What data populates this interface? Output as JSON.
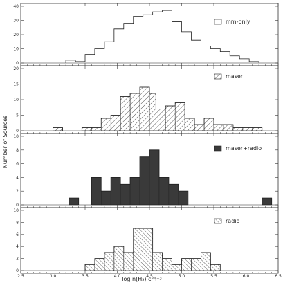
{
  "chart_data": [
    {
      "type": "bar",
      "legend": "mm-only",
      "style": "outline",
      "ylim": [
        0,
        40
      ],
      "yticks": [
        "0",
        "10",
        "20",
        "30",
        "40"
      ],
      "bins": [
        {
          "x0": 3.2,
          "x1": 3.35,
          "v": 2
        },
        {
          "x0": 3.35,
          "x1": 3.5,
          "v": 1
        },
        {
          "x0": 3.5,
          "x1": 3.65,
          "v": 6
        },
        {
          "x0": 3.65,
          "x1": 3.8,
          "v": 10
        },
        {
          "x0": 3.8,
          "x1": 3.95,
          "v": 15
        },
        {
          "x0": 3.95,
          "x1": 4.1,
          "v": 24
        },
        {
          "x0": 4.1,
          "x1": 4.25,
          "v": 28
        },
        {
          "x0": 4.25,
          "x1": 4.4,
          "v": 33
        },
        {
          "x0": 4.4,
          "x1": 4.55,
          "v": 34
        },
        {
          "x0": 4.55,
          "x1": 4.7,
          "v": 36
        },
        {
          "x0": 4.7,
          "x1": 4.85,
          "v": 37
        },
        {
          "x0": 4.85,
          "x1": 5.0,
          "v": 29
        },
        {
          "x0": 5.0,
          "x1": 5.15,
          "v": 22
        },
        {
          "x0": 5.15,
          "x1": 5.3,
          "v": 16
        },
        {
          "x0": 5.3,
          "x1": 5.45,
          "v": 12
        },
        {
          "x0": 5.45,
          "x1": 5.6,
          "v": 10
        },
        {
          "x0": 5.6,
          "x1": 5.75,
          "v": 8
        },
        {
          "x0": 5.75,
          "x1": 5.9,
          "v": 5
        },
        {
          "x0": 5.9,
          "x1": 6.05,
          "v": 3
        },
        {
          "x0": 6.05,
          "x1": 6.2,
          "v": 1
        }
      ]
    },
    {
      "type": "bar",
      "legend": "maser",
      "style": "hatch",
      "ylim": [
        0,
        20
      ],
      "yticks": [
        "0",
        "5",
        "10",
        "15",
        "20"
      ],
      "bins": [
        {
          "x0": 3.0,
          "x1": 3.15,
          "v": 1
        },
        {
          "x0": 3.45,
          "x1": 3.6,
          "v": 1
        },
        {
          "x0": 3.6,
          "x1": 3.75,
          "v": 1
        },
        {
          "x0": 3.75,
          "x1": 3.9,
          "v": 4
        },
        {
          "x0": 3.9,
          "x1": 4.05,
          "v": 5
        },
        {
          "x0": 4.05,
          "x1": 4.2,
          "v": 11
        },
        {
          "x0": 4.2,
          "x1": 4.35,
          "v": 12
        },
        {
          "x0": 4.35,
          "x1": 4.5,
          "v": 14
        },
        {
          "x0": 4.5,
          "x1": 4.6,
          "v": 12
        },
        {
          "x0": 4.6,
          "x1": 4.75,
          "v": 7
        },
        {
          "x0": 4.75,
          "x1": 4.9,
          "v": 8
        },
        {
          "x0": 4.9,
          "x1": 5.05,
          "v": 9
        },
        {
          "x0": 5.05,
          "x1": 5.2,
          "v": 4
        },
        {
          "x0": 5.2,
          "x1": 5.35,
          "v": 2
        },
        {
          "x0": 5.35,
          "x1": 5.5,
          "v": 4
        },
        {
          "x0": 5.5,
          "x1": 5.65,
          "v": 2
        },
        {
          "x0": 5.65,
          "x1": 5.8,
          "v": 2
        },
        {
          "x0": 5.8,
          "x1": 5.95,
          "v": 1
        },
        {
          "x0": 5.95,
          "x1": 6.1,
          "v": 1
        },
        {
          "x0": 6.1,
          "x1": 6.25,
          "v": 1
        }
      ]
    },
    {
      "type": "bar",
      "legend": "maser+radio",
      "style": "filled",
      "ylim": [
        0,
        10
      ],
      "yticks": [
        "0",
        "2",
        "4",
        "6",
        "8",
        "10"
      ],
      "bins": [
        {
          "x0": 3.25,
          "x1": 3.4,
          "v": 1
        },
        {
          "x0": 3.6,
          "x1": 3.75,
          "v": 4
        },
        {
          "x0": 3.75,
          "x1": 3.9,
          "v": 2
        },
        {
          "x0": 3.9,
          "x1": 4.05,
          "v": 4
        },
        {
          "x0": 4.05,
          "x1": 4.2,
          "v": 3
        },
        {
          "x0": 4.2,
          "x1": 4.35,
          "v": 4
        },
        {
          "x0": 4.35,
          "x1": 4.5,
          "v": 7
        },
        {
          "x0": 4.5,
          "x1": 4.65,
          "v": 8
        },
        {
          "x0": 4.65,
          "x1": 4.8,
          "v": 4
        },
        {
          "x0": 4.8,
          "x1": 4.95,
          "v": 3
        },
        {
          "x0": 4.95,
          "x1": 5.1,
          "v": 2
        },
        {
          "x0": 6.25,
          "x1": 6.4,
          "v": 1
        }
      ]
    },
    {
      "type": "bar",
      "legend": "radio",
      "style": "hatch",
      "ylim": [
        0,
        10
      ],
      "yticks": [
        "0",
        "2",
        "4",
        "6",
        "8",
        "10"
      ],
      "bins": [
        {
          "x0": 3.5,
          "x1": 3.65,
          "v": 1
        },
        {
          "x0": 3.65,
          "x1": 3.8,
          "v": 2
        },
        {
          "x0": 3.8,
          "x1": 3.95,
          "v": 3
        },
        {
          "x0": 3.95,
          "x1": 4.1,
          "v": 4
        },
        {
          "x0": 4.1,
          "x1": 4.25,
          "v": 3
        },
        {
          "x0": 4.25,
          "x1": 4.4,
          "v": 7
        },
        {
          "x0": 4.4,
          "x1": 4.55,
          "v": 7
        },
        {
          "x0": 4.55,
          "x1": 4.7,
          "v": 3
        },
        {
          "x0": 4.7,
          "x1": 4.85,
          "v": 2
        },
        {
          "x0": 4.85,
          "x1": 5.0,
          "v": 1
        },
        {
          "x0": 5.0,
          "x1": 5.15,
          "v": 2
        },
        {
          "x0": 5.15,
          "x1": 5.3,
          "v": 2
        },
        {
          "x0": 5.3,
          "x1": 5.45,
          "v": 3
        },
        {
          "x0": 5.45,
          "x1": 5.6,
          "v": 1
        }
      ]
    }
  ],
  "shared_axes": {
    "xlabel": "log n(H₂) cm⁻³",
    "ylabel": "Number of Sources",
    "xlim": [
      2.5,
      6.5
    ],
    "xticks": [
      "2.5",
      "3.0",
      "3.5",
      "4.0",
      "4.5",
      "5.0",
      "5.5",
      "6.0",
      "6.5"
    ]
  }
}
